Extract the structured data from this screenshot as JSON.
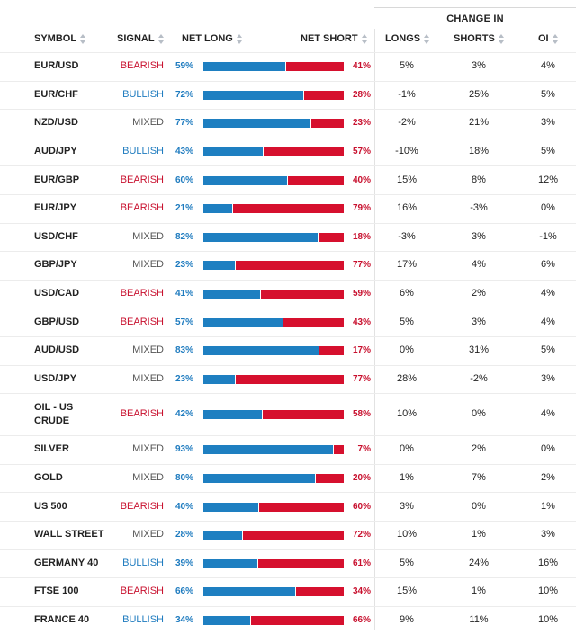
{
  "header": {
    "change_in": "CHANGE IN",
    "symbol": "SYMBOL",
    "signal": "SIGNAL",
    "net_long": "NET LONG",
    "net_short": "NET SHORT",
    "longs": "LONGS",
    "shorts": "SHORTS",
    "oi": "OI"
  },
  "colors": {
    "long": "#1e7fc1",
    "short": "#d6102e",
    "bearish": "#c8102e",
    "bullish": "#1e7bbf",
    "mixed": "#555555"
  },
  "rows": [
    {
      "symbol": "EUR/USD",
      "signal": "BEARISH",
      "long": "59%",
      "short": "41%",
      "longs": "5%",
      "shorts": "3%",
      "oi": "4%",
      "long_pct": 59
    },
    {
      "symbol": "EUR/CHF",
      "signal": "BULLISH",
      "long": "72%",
      "short": "28%",
      "longs": "-1%",
      "shorts": "25%",
      "oi": "5%",
      "long_pct": 72
    },
    {
      "symbol": "NZD/USD",
      "signal": "MIXED",
      "long": "77%",
      "short": "23%",
      "longs": "-2%",
      "shorts": "21%",
      "oi": "3%",
      "long_pct": 77
    },
    {
      "symbol": "AUD/JPY",
      "signal": "BULLISH",
      "long": "43%",
      "short": "57%",
      "longs": "-10%",
      "shorts": "18%",
      "oi": "5%",
      "long_pct": 43
    },
    {
      "symbol": "EUR/GBP",
      "signal": "BEARISH",
      "long": "60%",
      "short": "40%",
      "longs": "15%",
      "shorts": "8%",
      "oi": "12%",
      "long_pct": 60
    },
    {
      "symbol": "EUR/JPY",
      "signal": "BEARISH",
      "long": "21%",
      "short": "79%",
      "longs": "16%",
      "shorts": "-3%",
      "oi": "0%",
      "long_pct": 21
    },
    {
      "symbol": "USD/CHF",
      "signal": "MIXED",
      "long": "82%",
      "short": "18%",
      "longs": "-3%",
      "shorts": "3%",
      "oi": "-1%",
      "long_pct": 82
    },
    {
      "symbol": "GBP/JPY",
      "signal": "MIXED",
      "long": "23%",
      "short": "77%",
      "longs": "17%",
      "shorts": "4%",
      "oi": "6%",
      "long_pct": 23
    },
    {
      "symbol": "USD/CAD",
      "signal": "BEARISH",
      "long": "41%",
      "short": "59%",
      "longs": "6%",
      "shorts": "2%",
      "oi": "4%",
      "long_pct": 41
    },
    {
      "symbol": "GBP/USD",
      "signal": "BEARISH",
      "long": "57%",
      "short": "43%",
      "longs": "5%",
      "shorts": "3%",
      "oi": "4%",
      "long_pct": 57
    },
    {
      "symbol": "AUD/USD",
      "signal": "MIXED",
      "long": "83%",
      "short": "17%",
      "longs": "0%",
      "shorts": "31%",
      "oi": "5%",
      "long_pct": 83
    },
    {
      "symbol": "USD/JPY",
      "signal": "MIXED",
      "long": "23%",
      "short": "77%",
      "longs": "28%",
      "shorts": "-2%",
      "oi": "3%",
      "long_pct": 23
    },
    {
      "symbol": "OIL - US CRUDE",
      "signal": "BEARISH",
      "long": "42%",
      "short": "58%",
      "longs": "10%",
      "shorts": "0%",
      "oi": "4%",
      "long_pct": 42
    },
    {
      "symbol": "SILVER",
      "signal": "MIXED",
      "long": "93%",
      "short": "7%",
      "longs": "0%",
      "shorts": "2%",
      "oi": "0%",
      "long_pct": 93
    },
    {
      "symbol": "GOLD",
      "signal": "MIXED",
      "long": "80%",
      "short": "20%",
      "longs": "1%",
      "shorts": "7%",
      "oi": "2%",
      "long_pct": 80
    },
    {
      "symbol": "US 500",
      "signal": "BEARISH",
      "long": "40%",
      "short": "60%",
      "longs": "3%",
      "shorts": "0%",
      "oi": "1%",
      "long_pct": 40
    },
    {
      "symbol": "WALL STREET",
      "signal": "MIXED",
      "long": "28%",
      "short": "72%",
      "longs": "10%",
      "shorts": "1%",
      "oi": "3%",
      "long_pct": 28
    },
    {
      "symbol": "GERMANY 40",
      "signal": "BULLISH",
      "long": "39%",
      "short": "61%",
      "longs": "5%",
      "shorts": "24%",
      "oi": "16%",
      "long_pct": 39
    },
    {
      "symbol": "FTSE 100",
      "signal": "BEARISH",
      "long": "66%",
      "short": "34%",
      "longs": "15%",
      "shorts": "1%",
      "oi": "10%",
      "long_pct": 66
    },
    {
      "symbol": "FRANCE 40",
      "signal": "BULLISH",
      "long": "34%",
      "short": "66%",
      "longs": "9%",
      "shorts": "11%",
      "oi": "10%",
      "long_pct": 34
    }
  ]
}
